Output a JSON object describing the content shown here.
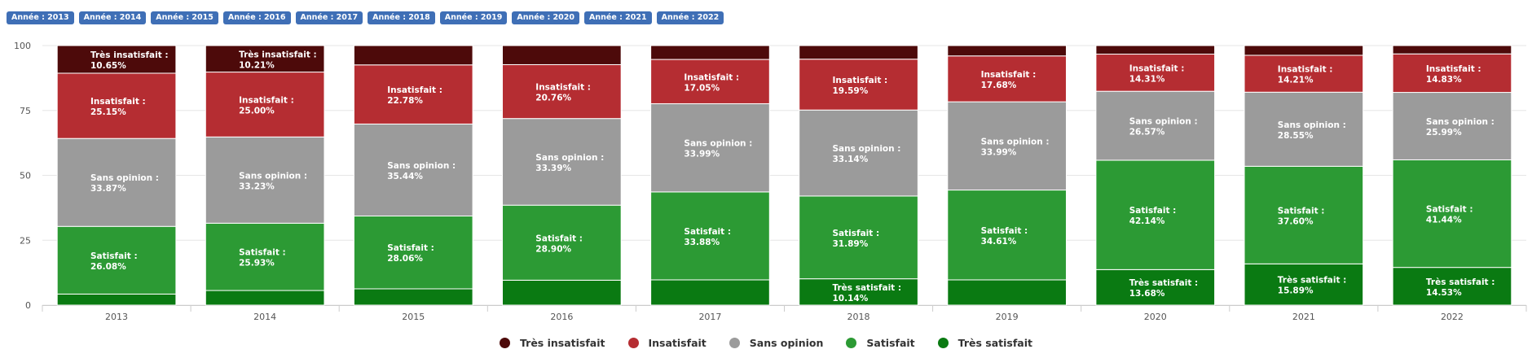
{
  "year_buttons": [
    {
      "label": "Année : 2013"
    },
    {
      "label": "Année : 2014"
    },
    {
      "label": "Année : 2015"
    },
    {
      "label": "Année : 2016"
    },
    {
      "label": "Année : 2017"
    },
    {
      "label": "Année : 2018"
    },
    {
      "label": "Année : 2019"
    },
    {
      "label": "Année : 2020"
    },
    {
      "label": "Année : 2021"
    },
    {
      "label": "Année : 2022"
    }
  ],
  "colors": {
    "year_button_bg": "#3f6fb6",
    "gridline": "#e6e6e6",
    "axis": "#cccccc"
  },
  "chart_data": {
    "type": "bar",
    "stacked": true,
    "categories": [
      "2013",
      "2014",
      "2015",
      "2016",
      "2017",
      "2018",
      "2019",
      "2020",
      "2021",
      "2022"
    ],
    "ylim": [
      0,
      100
    ],
    "yticks": [
      0,
      25,
      50,
      75,
      100
    ],
    "grid": true,
    "legend_position": "bottom-center",
    "series": [
      {
        "name": "Très satisfait",
        "color": "#0a7a12",
        "values": [
          4.25,
          5.63,
          6.27,
          9.6,
          9.73,
          10.14,
          9.73,
          13.68,
          15.89,
          14.53
        ],
        "labels": [
          "",
          "",
          "",
          "",
          "",
          "10.14%",
          "",
          "13.68%",
          "15.89%",
          "14.53%"
        ]
      },
      {
        "name": "Satisfait",
        "color": "#2c9a34",
        "values": [
          26.08,
          25.93,
          28.06,
          28.9,
          33.88,
          31.89,
          34.61,
          42.14,
          37.6,
          41.44
        ],
        "labels": [
          "26.08%",
          "25.93%",
          "28.06%",
          "28.90%",
          "33.88%",
          "31.89%",
          "34.61%",
          "42.14%",
          "37.60%",
          "41.44%"
        ]
      },
      {
        "name": "Sans opinion",
        "color": "#9b9b9b",
        "values": [
          33.87,
          33.23,
          35.44,
          33.39,
          33.99,
          33.14,
          33.99,
          26.57,
          28.55,
          25.99
        ],
        "labels": [
          "33.87%",
          "33.23%",
          "35.44%",
          "33.39%",
          "33.99%",
          "33.14%",
          "33.99%",
          "26.57%",
          "28.55%",
          "25.99%"
        ]
      },
      {
        "name": "Insatisfait",
        "color": "#b52d32",
        "values": [
          25.15,
          25.0,
          22.78,
          20.76,
          17.05,
          19.59,
          17.68,
          14.31,
          14.21,
          14.83
        ],
        "labels": [
          "25.15%",
          "25.00%",
          "22.78%",
          "20.76%",
          "17.05%",
          "19.59%",
          "17.68%",
          "14.31%",
          "14.21%",
          "14.83%"
        ]
      },
      {
        "name": "Très insatisfait",
        "color": "#4d0a0a",
        "values": [
          10.65,
          10.21,
          7.45,
          7.35,
          5.35,
          5.24,
          3.99,
          3.3,
          3.75,
          3.21
        ],
        "labels": [
          "10.65%",
          "10.21%",
          "",
          "",
          "",
          "",
          "",
          "",
          "",
          ""
        ]
      }
    ],
    "legend_order": [
      "Très insatisfait",
      "Insatisfait",
      "Sans opinion",
      "Satisfait",
      "Très satisfait"
    ]
  }
}
